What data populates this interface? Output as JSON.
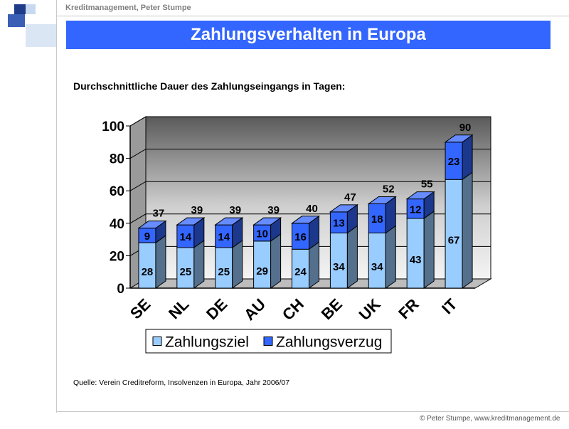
{
  "header": {
    "text": "Kreditmanagement, Peter Stumpe"
  },
  "title": "Zahlungsverhalten in Europa",
  "subtitle": "Durchschnittliche Dauer des Zahlungseingangs in Tagen:",
  "source": "Quelle: Verein Creditreform, Insolvenzen in Europa, Jahr 2006/07",
  "footer": "© Peter Stumpe,  www.kreditmanagement.de",
  "colors": {
    "accent": "#3366ff",
    "series1": "#99ccff",
    "series2": "#3366ff",
    "logo_dark": "#1f3c88",
    "logo_light": "#c6d9f1"
  },
  "chart_data": {
    "type": "bar",
    "stacked": true,
    "categories": [
      "SE",
      "NL",
      "DE",
      "AU",
      "CH",
      "BE",
      "UK",
      "FR",
      "IT"
    ],
    "series": [
      {
        "name": "Zahlungsziel",
        "values": [
          28,
          25,
          25,
          29,
          24,
          34,
          34,
          43,
          67
        ]
      },
      {
        "name": "Zahlungsverzug",
        "values": [
          9,
          14,
          14,
          10,
          16,
          13,
          18,
          12,
          23
        ]
      }
    ],
    "totals": [
      37,
      39,
      39,
      39,
      40,
      47,
      52,
      55,
      90
    ],
    "y_ticks": [
      "0",
      "20",
      "40",
      "60",
      "80",
      "100"
    ],
    "ylim": [
      0,
      100
    ],
    "grid": true,
    "legend": "bottom"
  }
}
